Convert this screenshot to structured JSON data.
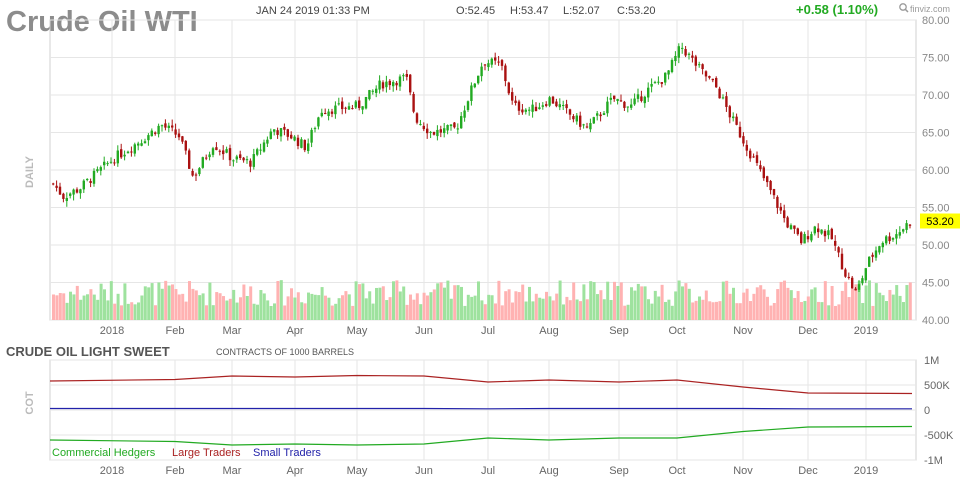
{
  "header": {
    "title": "Crude Oil WTI",
    "datetime": "JAN 24 2019 01:33 PM",
    "open": "O:52.45",
    "high": "H:53.47",
    "low": "L:52.07",
    "close": "C:53.20",
    "change": "+0.58 (1.10%)",
    "brand": "finviz.com",
    "brand_icon": "magnifier-icon"
  },
  "price_panel": {
    "side_label": "DAILY",
    "current_price_label": "53.20"
  },
  "cot_panel": {
    "title": "CRUDE OIL LIGHT SWEET",
    "subtitle": "CONTRACTS OF 1000 BARRELS",
    "side_label": "COT",
    "legend": [
      {
        "label": "Commercial Hedgers",
        "color": "#22aa22"
      },
      {
        "label": "Large Traders",
        "color": "#aa2222"
      },
      {
        "label": "Small Traders",
        "color": "#2222aa"
      }
    ]
  },
  "colors": {
    "up": "#22aa22",
    "down": "#aa1111",
    "vol_up": "#9ee29e",
    "vol_down": "#ffb2b2",
    "grid": "#e6e6e6",
    "price_tag": "#ffff00"
  },
  "chart_data": [
    {
      "type": "candlestick",
      "title": "Crude Oil WTI",
      "x_tick_labels": [
        "2018",
        "Feb",
        "Mar",
        "Apr",
        "May",
        "Jun",
        "Jul",
        "Aug",
        "Sep",
        "Oct",
        "Nov",
        "Dec",
        "2019"
      ],
      "y_tick_labels": [
        "40.00",
        "45.00",
        "50.00",
        "55.00",
        "60.00",
        "65.00",
        "70.00",
        "75.00",
        "80.00"
      ],
      "ylim": [
        40,
        80
      ],
      "grid": true,
      "last_close": 53.2,
      "monthly_trend_close": [
        {
          "x": "2018",
          "close": 61.0
        },
        {
          "x": "Feb",
          "close": 64.5
        },
        {
          "x": "Mar",
          "close": 61.5
        },
        {
          "x": "Apr",
          "close": 64.5
        },
        {
          "x": "May",
          "close": 70.0
        },
        {
          "x": "Jun",
          "close": 66.0
        },
        {
          "x": "Jul",
          "close": 73.5
        },
        {
          "x": "Aug",
          "close": 68.5
        },
        {
          "x": "Sep",
          "close": 69.5
        },
        {
          "x": "Oct",
          "close": 75.5
        },
        {
          "x": "Nov",
          "close": 63.5
        },
        {
          "x": "Dec",
          "close": 52.0
        },
        {
          "x": "2019",
          "close": 47.5
        }
      ],
      "key_points": [
        {
          "label": "start",
          "close": 58.5
        },
        {
          "label": "late Jan high",
          "close": 66.0
        },
        {
          "label": "mid Feb low",
          "close": 59.0
        },
        {
          "label": "late May high",
          "close": 72.5
        },
        {
          "label": "early Jul high",
          "close": 75.0
        },
        {
          "label": "early Oct high",
          "close": 76.5
        },
        {
          "label": "late Dec low",
          "close": 42.5
        },
        {
          "label": "last",
          "close": 53.2
        }
      ]
    },
    {
      "type": "line",
      "title": "CRUDE OIL LIGHT SWEET",
      "subtitle": "CONTRACTS OF 1000 BARRELS",
      "y_tick_labels": [
        "1M",
        "500K",
        "0",
        "-500K",
        "-1M"
      ],
      "ylim": [
        -1000000,
        1000000
      ],
      "series": [
        {
          "name": "Large Traders",
          "values": [
            580000,
            610000,
            680000,
            660000,
            690000,
            680000,
            560000,
            600000,
            560000,
            600000,
            460000,
            340000,
            330000
          ]
        },
        {
          "name": "Small Traders",
          "values": [
            30000,
            30000,
            30000,
            30000,
            30000,
            30000,
            25000,
            30000,
            30000,
            30000,
            30000,
            25000,
            25000
          ]
        },
        {
          "name": "Commercial Hedgers",
          "values": [
            -600000,
            -630000,
            -700000,
            -680000,
            -700000,
            -680000,
            -560000,
            -600000,
            -560000,
            -560000,
            -430000,
            -340000,
            -330000
          ]
        }
      ]
    }
  ]
}
